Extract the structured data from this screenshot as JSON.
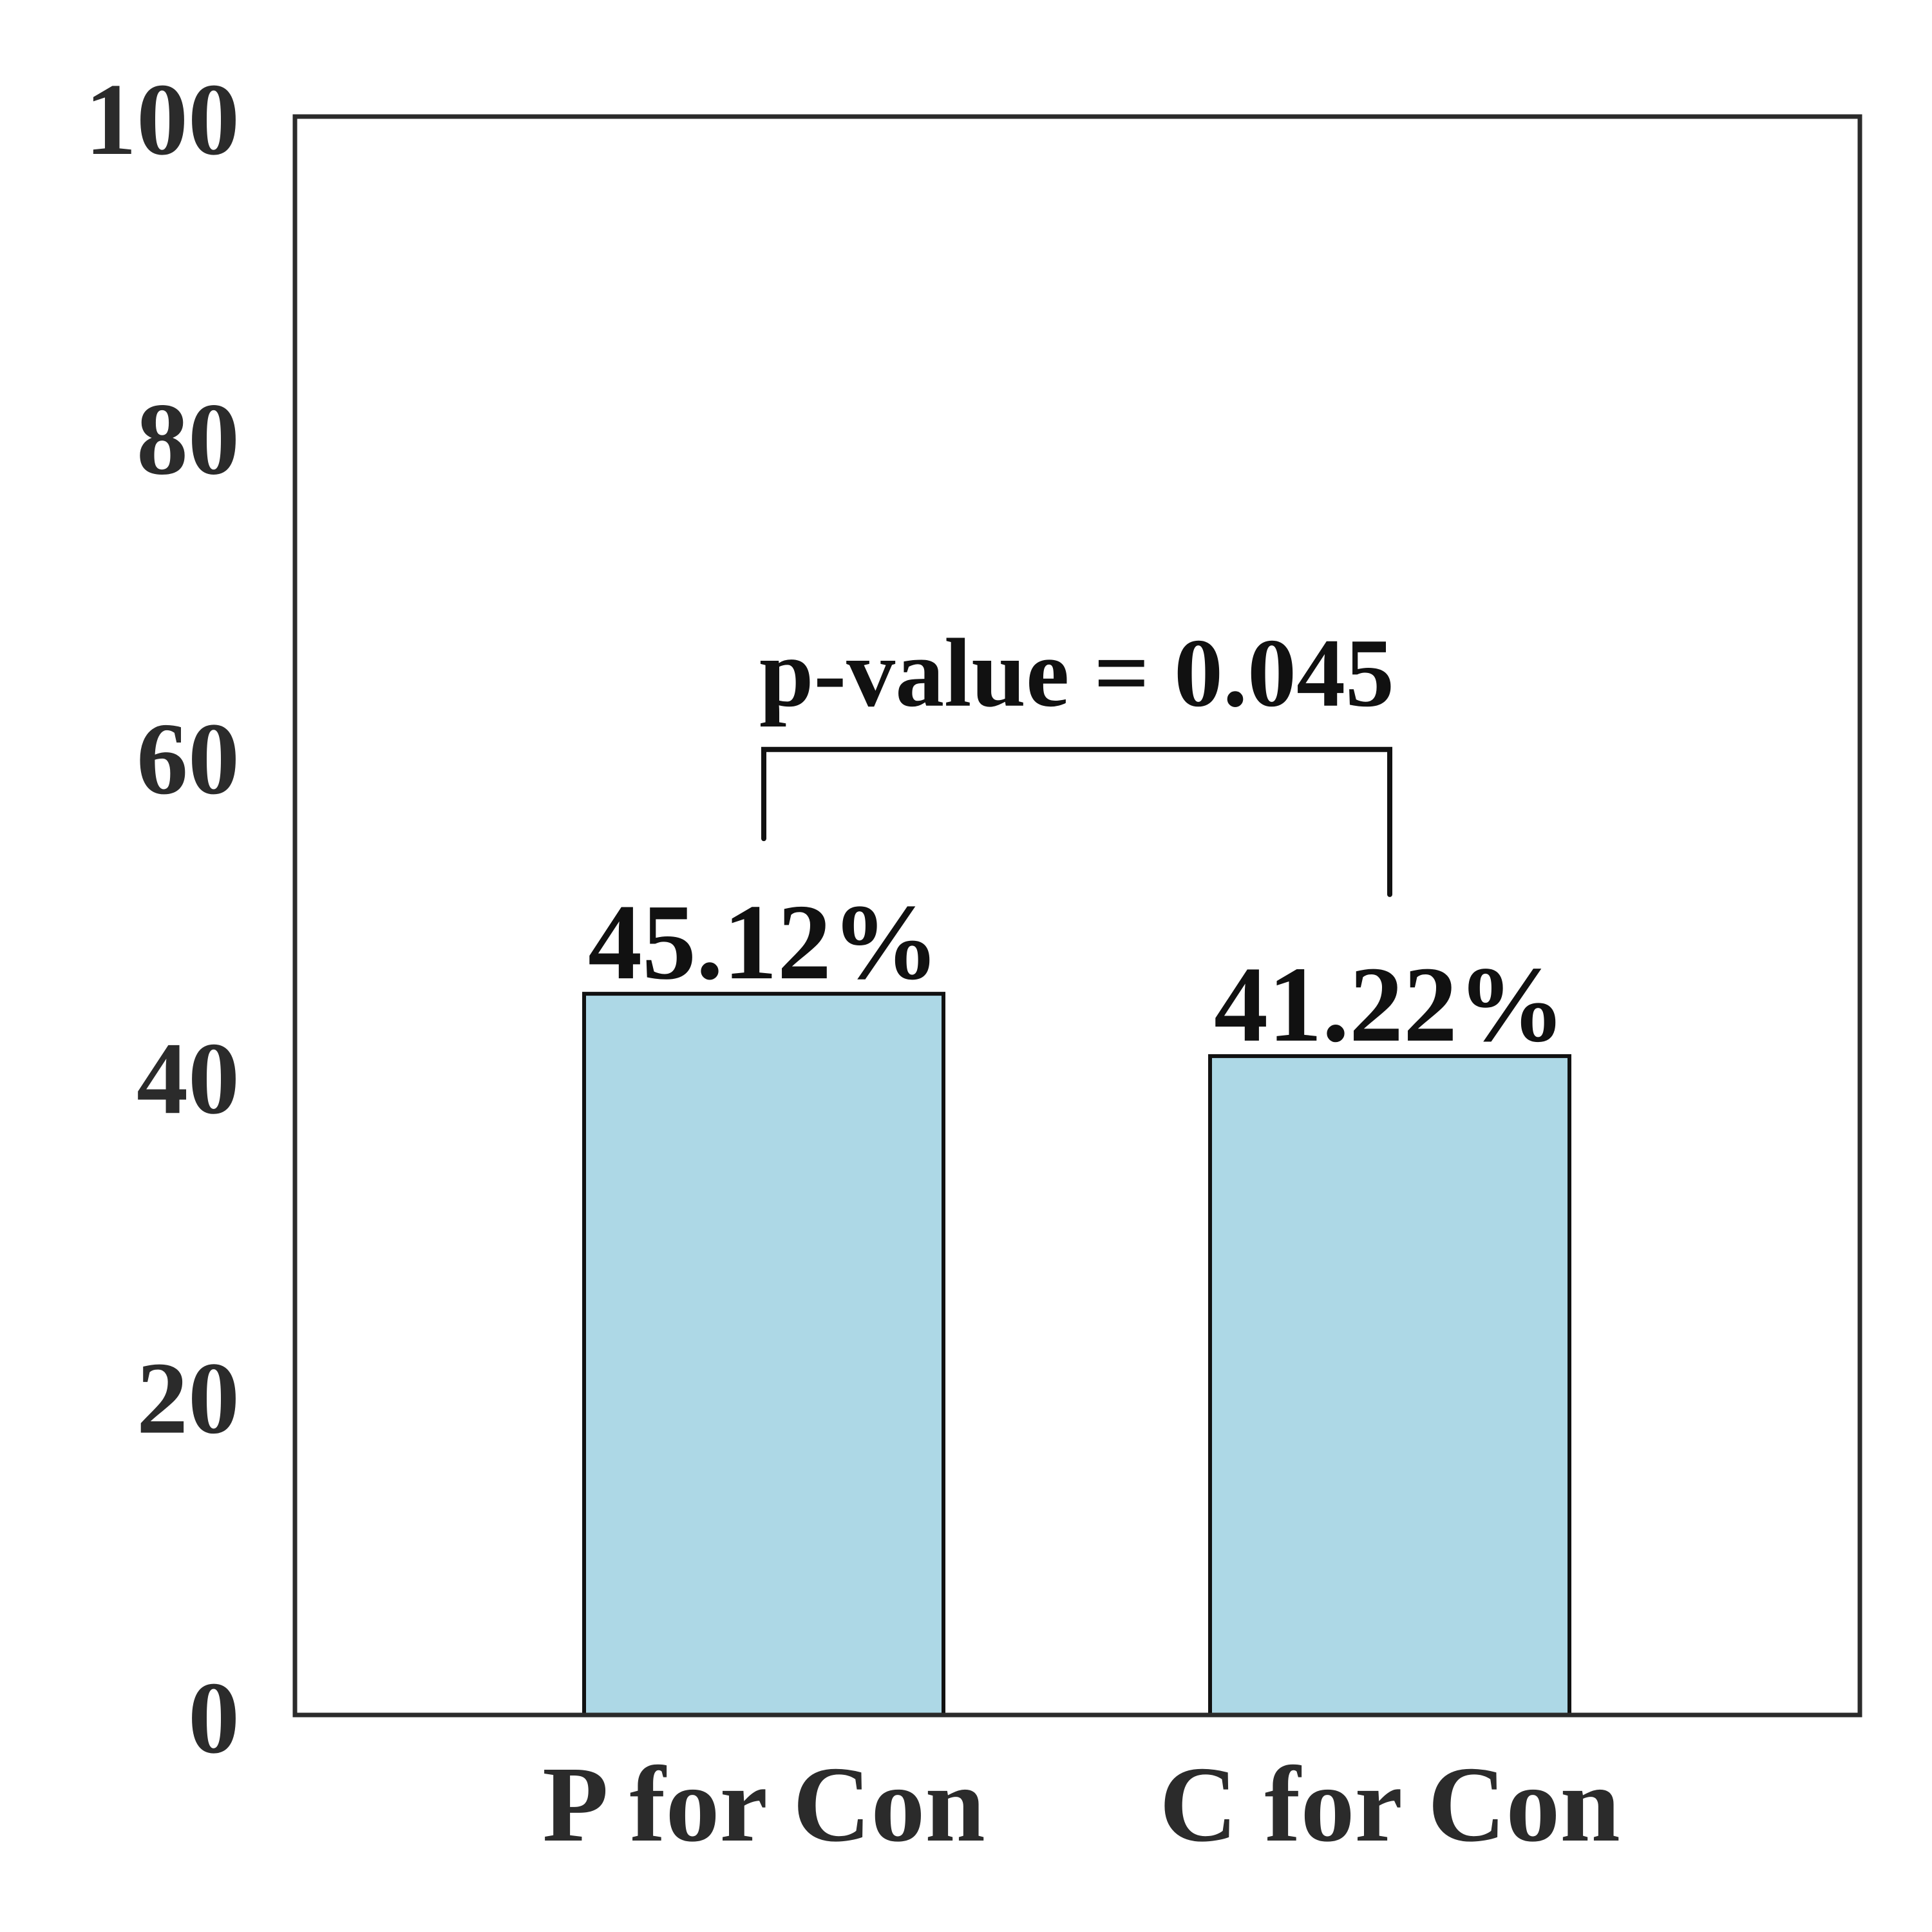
{
  "chart_data": {
    "type": "bar",
    "categories": [
      "P for Con",
      "C for Con"
    ],
    "values": [
      45.12,
      41.22
    ],
    "data_labels": [
      "45.12%",
      "41.22%"
    ],
    "title": "",
    "xlabel": "",
    "ylabel": "",
    "ylim": [
      0,
      100
    ],
    "yticks": [
      0,
      20,
      40,
      60,
      80,
      100
    ],
    "ytick_labels": [
      "0",
      "20",
      "40",
      "60",
      "80",
      "100"
    ],
    "grid": false,
    "bar_color": "#add8e6",
    "bar_edge_color": "#111111",
    "axis_color": "#2b2b2b",
    "annotation": {
      "text": "p-value = 0.045",
      "between": [
        "P for Con",
        "C for Con"
      ]
    }
  }
}
